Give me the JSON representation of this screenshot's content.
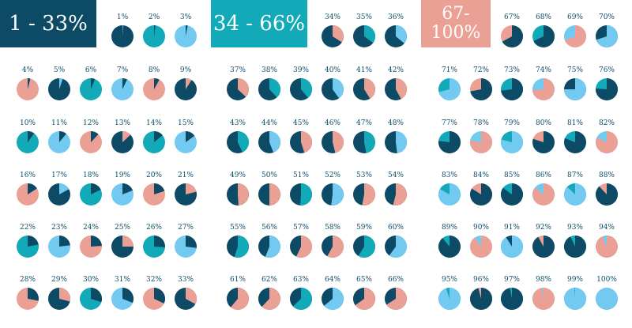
{
  "banners": [
    {
      "label": "1 - 33%",
      "color": "#0c4a66"
    },
    {
      "label": "34 - 66%",
      "color": "#12a9b9"
    },
    {
      "label": "67- 100%",
      "color": "#eba096"
    }
  ],
  "palette": [
    "#0c4a66",
    "#12a9b9",
    "#73caf1",
    "#eba096"
  ],
  "pies": [
    {
      "label": "1%",
      "value": 1,
      "base": "#0c4a66",
      "slice": "#73caf1"
    },
    {
      "label": "2%",
      "value": 2,
      "base": "#12a9b9",
      "slice": "#0c4a66"
    },
    {
      "label": "3%",
      "value": 3,
      "base": "#73caf1",
      "slice": "#0c4a66"
    },
    {
      "label": "4%",
      "value": 4,
      "base": "#eba096",
      "slice": "#0c4a66"
    },
    {
      "label": "5%",
      "value": 5,
      "base": "#0c4a66",
      "slice": "#73caf1"
    },
    {
      "label": "6%",
      "value": 6,
      "base": "#12a9b9",
      "slice": "#0c4a66"
    },
    {
      "label": "7%",
      "value": 7,
      "base": "#73caf1",
      "slice": "#0c4a66"
    },
    {
      "label": "8%",
      "value": 8,
      "base": "#eba096",
      "slice": "#0c4a66"
    },
    {
      "label": "9%",
      "value": 9,
      "base": "#0c4a66",
      "slice": "#eba096"
    },
    {
      "label": "10%",
      "value": 10,
      "base": "#12a9b9",
      "slice": "#0c4a66"
    },
    {
      "label": "11%",
      "value": 11,
      "base": "#73caf1",
      "slice": "#0c4a66"
    },
    {
      "label": "12%",
      "value": 12,
      "base": "#eba096",
      "slice": "#0c4a66"
    },
    {
      "label": "13%",
      "value": 13,
      "base": "#0c4a66",
      "slice": "#eba096"
    },
    {
      "label": "14%",
      "value": 14,
      "base": "#12a9b9",
      "slice": "#0c4a66"
    },
    {
      "label": "15%",
      "value": 15,
      "base": "#73caf1",
      "slice": "#0c4a66"
    },
    {
      "label": "16%",
      "value": 16,
      "base": "#eba096",
      "slice": "#0c4a66"
    },
    {
      "label": "17%",
      "value": 17,
      "base": "#0c4a66",
      "slice": "#73caf1"
    },
    {
      "label": "18%",
      "value": 18,
      "base": "#12a9b9",
      "slice": "#0c4a66"
    },
    {
      "label": "19%",
      "value": 19,
      "base": "#73caf1",
      "slice": "#0c4a66"
    },
    {
      "label": "20%",
      "value": 20,
      "base": "#eba096",
      "slice": "#0c4a66"
    },
    {
      "label": "21%",
      "value": 21,
      "base": "#0c4a66",
      "slice": "#eba096"
    },
    {
      "label": "22%",
      "value": 22,
      "base": "#12a9b9",
      "slice": "#0c4a66"
    },
    {
      "label": "23%",
      "value": 23,
      "base": "#73caf1",
      "slice": "#0c4a66"
    },
    {
      "label": "24%",
      "value": 24,
      "base": "#eba096",
      "slice": "#0c4a66"
    },
    {
      "label": "25%",
      "value": 25,
      "base": "#0c4a66",
      "slice": "#eba096"
    },
    {
      "label": "26%",
      "value": 26,
      "base": "#12a9b9",
      "slice": "#0c4a66"
    },
    {
      "label": "27%",
      "value": 27,
      "base": "#73caf1",
      "slice": "#0c4a66"
    },
    {
      "label": "28%",
      "value": 28,
      "base": "#eba096",
      "slice": "#0c4a66"
    },
    {
      "label": "29%",
      "value": 29,
      "base": "#0c4a66",
      "slice": "#eba096"
    },
    {
      "label": "30%",
      "value": 30,
      "base": "#12a9b9",
      "slice": "#0c4a66"
    },
    {
      "label": "31%",
      "value": 31,
      "base": "#73caf1",
      "slice": "#0c4a66"
    },
    {
      "label": "32%",
      "value": 32,
      "base": "#eba096",
      "slice": "#0c4a66"
    },
    {
      "label": "33%",
      "value": 33,
      "base": "#0c4a66",
      "slice": "#eba096"
    },
    {
      "label": "34%",
      "value": 34,
      "base": "#0c4a66",
      "slice": "#eba096"
    },
    {
      "label": "35%",
      "value": 35,
      "base": "#0c4a66",
      "slice": "#12a9b9"
    },
    {
      "label": "36%",
      "value": 36,
      "base": "#0c4a66",
      "slice": "#73caf1"
    },
    {
      "label": "37%",
      "value": 37,
      "base": "#0c4a66",
      "slice": "#eba096"
    },
    {
      "label": "38%",
      "value": 38,
      "base": "#0c4a66",
      "slice": "#12a9b9"
    },
    {
      "label": "39%",
      "value": 39,
      "base": "#0c4a66",
      "slice": "#12a9b9"
    },
    {
      "label": "40%",
      "value": 40,
      "base": "#0c4a66",
      "slice": "#73caf1"
    },
    {
      "label": "41%",
      "value": 41,
      "base": "#0c4a66",
      "slice": "#eba096"
    },
    {
      "label": "42%",
      "value": 42,
      "base": "#0c4a66",
      "slice": "#eba096"
    },
    {
      "label": "43%",
      "value": 43,
      "base": "#0c4a66",
      "slice": "#12a9b9"
    },
    {
      "label": "44%",
      "value": 44,
      "base": "#0c4a66",
      "slice": "#73caf1"
    },
    {
      "label": "45%",
      "value": 45,
      "base": "#0c4a66",
      "slice": "#eba096"
    },
    {
      "label": "46%",
      "value": 46,
      "base": "#0c4a66",
      "slice": "#eba096"
    },
    {
      "label": "47%",
      "value": 47,
      "base": "#0c4a66",
      "slice": "#12a9b9"
    },
    {
      "label": "48%",
      "value": 48,
      "base": "#0c4a66",
      "slice": "#73caf1"
    },
    {
      "label": "49%",
      "value": 49,
      "base": "#0c4a66",
      "slice": "#eba096"
    },
    {
      "label": "50%",
      "value": 50,
      "base": "#0c4a66",
      "slice": "#eba096"
    },
    {
      "label": "51%",
      "value": 51,
      "base": "#0c4a66",
      "slice": "#12a9b9"
    },
    {
      "label": "52%",
      "value": 52,
      "base": "#0c4a66",
      "slice": "#73caf1"
    },
    {
      "label": "53%",
      "value": 53,
      "base": "#0c4a66",
      "slice": "#eba096"
    },
    {
      "label": "54%",
      "value": 54,
      "base": "#0c4a66",
      "slice": "#eba096"
    },
    {
      "label": "55%",
      "value": 55,
      "base": "#0c4a66",
      "slice": "#12a9b9"
    },
    {
      "label": "56%",
      "value": 56,
      "base": "#0c4a66",
      "slice": "#73caf1"
    },
    {
      "label": "57%",
      "value": 57,
      "base": "#0c4a66",
      "slice": "#eba096"
    },
    {
      "label": "58%",
      "value": 58,
      "base": "#0c4a66",
      "slice": "#eba096"
    },
    {
      "label": "59%",
      "value": 59,
      "base": "#0c4a66",
      "slice": "#12a9b9"
    },
    {
      "label": "60%",
      "value": 60,
      "base": "#0c4a66",
      "slice": "#73caf1"
    },
    {
      "label": "61%",
      "value": 61,
      "base": "#0c4a66",
      "slice": "#eba096"
    },
    {
      "label": "62%",
      "value": 62,
      "base": "#0c4a66",
      "slice": "#eba096"
    },
    {
      "label": "63%",
      "value": 63,
      "base": "#0c4a66",
      "slice": "#12a9b9"
    },
    {
      "label": "64%",
      "value": 64,
      "base": "#0c4a66",
      "slice": "#73caf1"
    },
    {
      "label": "65%",
      "value": 65,
      "base": "#0c4a66",
      "slice": "#eba096"
    },
    {
      "label": "66%",
      "value": 66,
      "base": "#0c4a66",
      "slice": "#eba096"
    },
    {
      "label": "67%",
      "value": 67,
      "base": "#eba096",
      "slice": "#0c4a66"
    },
    {
      "label": "68%",
      "value": 68,
      "base": "#12a9b9",
      "slice": "#0c4a66"
    },
    {
      "label": "69%",
      "value": 69,
      "base": "#73caf1",
      "slice": "#eba096"
    },
    {
      "label": "70%",
      "value": 70,
      "base": "#0c4a66",
      "slice": "#73caf1"
    },
    {
      "label": "71%",
      "value": 71,
      "base": "#12a9b9",
      "slice": "#73caf1"
    },
    {
      "label": "72%",
      "value": 72,
      "base": "#eba096",
      "slice": "#0c4a66"
    },
    {
      "label": "73%",
      "value": 73,
      "base": "#12a9b9",
      "slice": "#0c4a66"
    },
    {
      "label": "74%",
      "value": 74,
      "base": "#73caf1",
      "slice": "#eba096"
    },
    {
      "label": "75%",
      "value": 75,
      "base": "#0c4a66",
      "slice": "#73caf1"
    },
    {
      "label": "76%",
      "value": 76,
      "base": "#12a9b9",
      "slice": "#0c4a66"
    },
    {
      "label": "77%",
      "value": 77,
      "base": "#12a9b9",
      "slice": "#0c4a66"
    },
    {
      "label": "78%",
      "value": 78,
      "base": "#73caf1",
      "slice": "#eba096"
    },
    {
      "label": "79%",
      "value": 79,
      "base": "#12a9b9",
      "slice": "#73caf1"
    },
    {
      "label": "80%",
      "value": 80,
      "base": "#eba096",
      "slice": "#0c4a66"
    },
    {
      "label": "81%",
      "value": 81,
      "base": "#12a9b9",
      "slice": "#0c4a66"
    },
    {
      "label": "82%",
      "value": 82,
      "base": "#73caf1",
      "slice": "#eba096"
    },
    {
      "label": "83%",
      "value": 83,
      "base": "#12a9b9",
      "slice": "#73caf1"
    },
    {
      "label": "84%",
      "value": 84,
      "base": "#eba096",
      "slice": "#0c4a66"
    },
    {
      "label": "85%",
      "value": 85,
      "base": "#12a9b9",
      "slice": "#0c4a66"
    },
    {
      "label": "86%",
      "value": 86,
      "base": "#73caf1",
      "slice": "#eba096"
    },
    {
      "label": "87%",
      "value": 87,
      "base": "#12a9b9",
      "slice": "#73caf1"
    },
    {
      "label": "88%",
      "value": 88,
      "base": "#eba096",
      "slice": "#0c4a66"
    },
    {
      "label": "89%",
      "value": 89,
      "base": "#12a9b9",
      "slice": "#0c4a66"
    },
    {
      "label": "90%",
      "value": 90,
      "base": "#73caf1",
      "slice": "#eba096"
    },
    {
      "label": "91%",
      "value": 91,
      "base": "#0c4a66",
      "slice": "#73caf1"
    },
    {
      "label": "92%",
      "value": 92,
      "base": "#eba096",
      "slice": "#0c4a66"
    },
    {
      "label": "93%",
      "value": 93,
      "base": "#12a9b9",
      "slice": "#0c4a66"
    },
    {
      "label": "94%",
      "value": 94,
      "base": "#73caf1",
      "slice": "#eba096"
    },
    {
      "label": "95%",
      "value": 95,
      "base": "#12a9b9",
      "slice": "#73caf1"
    },
    {
      "label": "96%",
      "value": 96,
      "base": "#eba096",
      "slice": "#0c4a66"
    },
    {
      "label": "97%",
      "value": 97,
      "base": "#12a9b9",
      "slice": "#0c4a66"
    },
    {
      "label": "98%",
      "value": 98,
      "base": "#73caf1",
      "slice": "#eba096"
    },
    {
      "label": "99%",
      "value": 99,
      "base": "#12a9b9",
      "slice": "#73caf1"
    },
    {
      "label": "100%",
      "value": 100,
      "base": "#eba096",
      "slice": "#73caf1"
    }
  ]
}
